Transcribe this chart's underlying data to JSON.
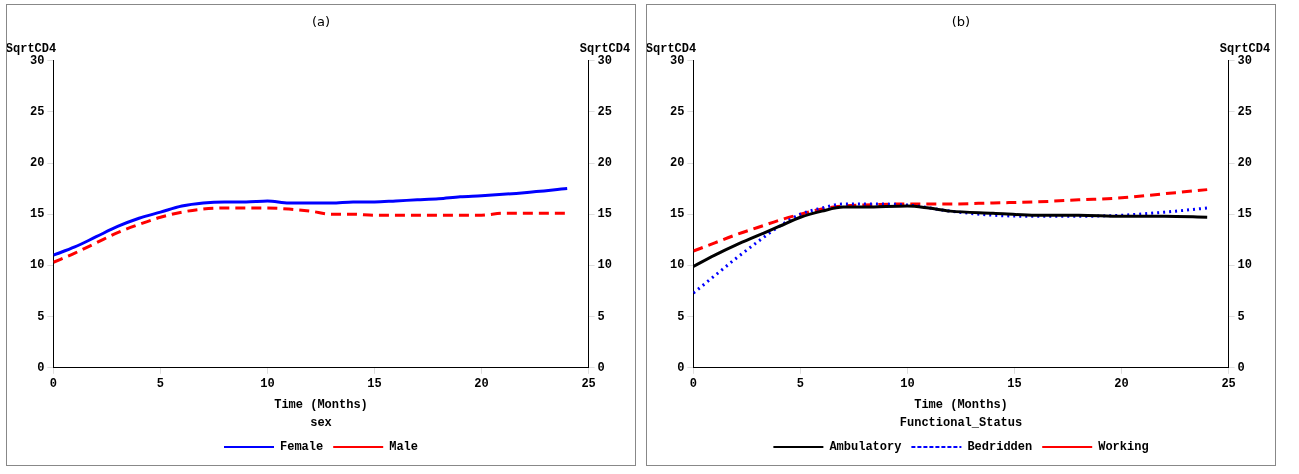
{
  "chart_data": [
    {
      "type": "line",
      "title": "(a)",
      "xlabel": "Time (Months)",
      "ylabel": "SqrtCD4",
      "y2label": "SqrtCD4",
      "legend_title": "sex",
      "legend": "bottom",
      "xlim": [
        0,
        25
      ],
      "xticks": [
        0,
        5,
        10,
        15,
        20,
        25
      ],
      "ylim": [
        0,
        30
      ],
      "yticks": [
        0,
        5,
        10,
        15,
        20,
        25,
        30
      ],
      "y2lim": [
        0,
        30
      ],
      "y2ticks": [
        0,
        5,
        10,
        15,
        20,
        25,
        30
      ],
      "grid": false,
      "marker": "none",
      "series": [
        {
          "name": "Female",
          "color": "#0000ff",
          "line_style": "solid",
          "x": [
            0,
            1,
            2,
            3,
            4,
            5,
            6,
            7,
            8,
            9,
            10,
            11,
            12,
            13,
            14,
            15,
            16,
            17,
            18,
            19,
            20,
            22,
            24
          ],
          "values": [
            11,
            11.8,
            12.8,
            13.8,
            14.6,
            15.2,
            15.8,
            16.1,
            16.2,
            16.2,
            16.3,
            16.1,
            16.1,
            16.1,
            16.2,
            16.2,
            16.3,
            16.4,
            16.5,
            16.7,
            16.8,
            17.1,
            17.5
          ]
        },
        {
          "name": "Male",
          "color": "#ff0000",
          "line_style": "dashed",
          "x": [
            0,
            1,
            2,
            3,
            4,
            5,
            6,
            7,
            8,
            10,
            11,
            12,
            13,
            14,
            15,
            20,
            21,
            22,
            24
          ],
          "values": [
            10.3,
            11.2,
            12.2,
            13.2,
            14.0,
            14.7,
            15.2,
            15.5,
            15.6,
            15.6,
            15.5,
            15.3,
            15.0,
            15.0,
            14.9,
            14.9,
            15.1,
            15.1,
            15.1
          ]
        }
      ]
    },
    {
      "type": "line",
      "title": "(b)",
      "xlabel": "Time (Months)",
      "ylabel": "SqrtCD4",
      "y2label": "SqrtCD4",
      "legend_title": "Functional_Status",
      "legend": "bottom",
      "xlim": [
        0,
        25
      ],
      "xticks": [
        0,
        5,
        10,
        15,
        20,
        25
      ],
      "ylim": [
        0,
        30
      ],
      "yticks": [
        0,
        5,
        10,
        15,
        20,
        25,
        30
      ],
      "y2lim": [
        0,
        30
      ],
      "y2ticks": [
        0,
        5,
        10,
        15,
        20,
        25,
        30
      ],
      "grid": false,
      "marker": "none",
      "series": [
        {
          "name": "Ambulatory",
          "color": "#000000",
          "line_style": "solid",
          "x": [
            0,
            1,
            2,
            3,
            4,
            5,
            6,
            7,
            8,
            10,
            11,
            12,
            14,
            16,
            18,
            20,
            22,
            24
          ],
          "values": [
            9.9,
            11,
            12,
            12.9,
            13.8,
            14.7,
            15.3,
            15.7,
            15.7,
            15.8,
            15.6,
            15.3,
            15.1,
            14.9,
            14.9,
            14.8,
            14.8,
            14.7
          ]
        },
        {
          "name": "Bedridden",
          "color": "#0000ff",
          "line_style": "dotted",
          "x": [
            0,
            1,
            2,
            3,
            4,
            5,
            6,
            7,
            8,
            10,
            12,
            14,
            16,
            18,
            20,
            22,
            24
          ],
          "values": [
            7.3,
            9,
            10.7,
            12.3,
            13.8,
            15.0,
            15.6,
            16.0,
            16.0,
            15.9,
            15.3,
            14.9,
            14.8,
            14.8,
            14.9,
            15.2,
            15.6
          ]
        },
        {
          "name": "Working",
          "color": "#ff0000",
          "line_style": "dashed",
          "x": [
            0,
            1,
            2,
            3,
            4,
            5,
            6,
            7,
            8,
            10,
            12,
            14,
            16,
            18,
            20,
            22,
            24
          ],
          "values": [
            11.4,
            12.2,
            13,
            13.7,
            14.4,
            15.0,
            15.5,
            15.8,
            15.9,
            16.0,
            16.0,
            16.1,
            16.2,
            16.4,
            16.6,
            17.0,
            17.4
          ]
        }
      ]
    }
  ]
}
